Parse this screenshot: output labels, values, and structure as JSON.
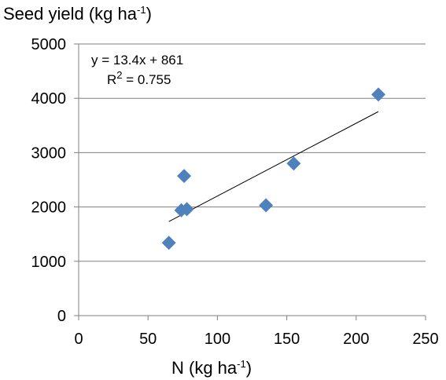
{
  "chart_data": {
    "type": "scatter",
    "ylabel": {
      "main": "Seed yield (kg ha",
      "sup": "-1",
      "close": ")"
    },
    "xlabel": {
      "main": "N  (kg ha",
      "sup": "-1",
      "close": ")"
    },
    "xlim": [
      0,
      250
    ],
    "ylim": [
      0,
      5000
    ],
    "x_ticks": [
      0,
      50,
      100,
      150,
      200,
      250
    ],
    "y_ticks": [
      0,
      1000,
      2000,
      3000,
      4000,
      5000
    ],
    "grid": "horizontal",
    "marker_color": "#4f81bd",
    "trendline_color": "#000000",
    "points": [
      {
        "x": 65,
        "y": 1340
      },
      {
        "x": 74,
        "y": 1940
      },
      {
        "x": 76,
        "y": 2570
      },
      {
        "x": 78,
        "y": 1960
      },
      {
        "x": 135,
        "y": 2030
      },
      {
        "x": 155,
        "y": 2800
      },
      {
        "x": 216,
        "y": 4070
      }
    ],
    "trendline": {
      "slope": 13.4,
      "intercept": 861,
      "x_start": 65,
      "x_end": 216
    },
    "annotation": {
      "equation": "y = 13.4x + 861",
      "r2_label": "R",
      "r2_sup": "2",
      "r2_value": " = 0.755"
    }
  }
}
